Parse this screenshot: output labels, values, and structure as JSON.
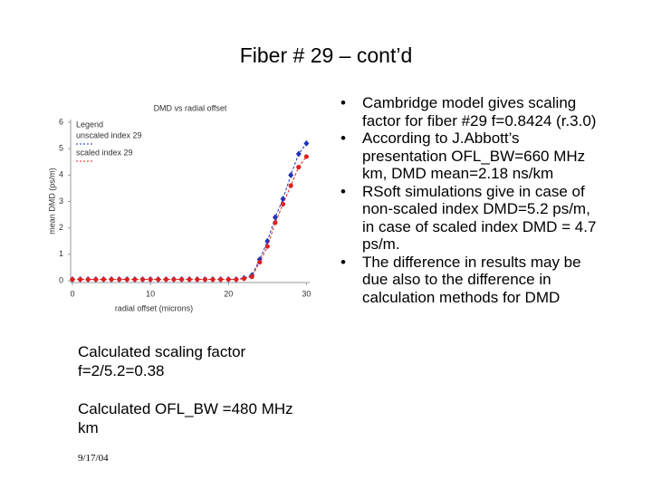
{
  "title": "Fiber # 29 – cont’d",
  "chart": {
    "type": "line",
    "title": "DMD vs radial offset",
    "x_label": "radial offset (microns)",
    "y_label": "mean DMD (ps/m)",
    "legend_title": "Legend",
    "x": [
      0,
      1,
      2,
      3,
      4,
      5,
      6,
      7,
      8,
      9,
      10,
      11,
      12,
      13,
      14,
      15,
      16,
      17,
      18,
      19,
      20,
      21,
      22,
      23,
      24,
      25,
      26,
      27,
      28,
      29,
      30
    ],
    "series": [
      {
        "name": "unscaled index 29",
        "color": "#2233bb",
        "values": [
          0.05,
          0.05,
          0.05,
          0.05,
          0.05,
          0.05,
          0.05,
          0.05,
          0.05,
          0.05,
          0.05,
          0.05,
          0.05,
          0.05,
          0.05,
          0.05,
          0.05,
          0.05,
          0.05,
          0.05,
          0.05,
          0.05,
          0.1,
          0.2,
          0.8,
          1.5,
          2.4,
          3.1,
          4.0,
          4.8,
          5.2
        ]
      },
      {
        "name": "scaled index 29",
        "color": "#dd2222",
        "values": [
          0.05,
          0.05,
          0.05,
          0.05,
          0.05,
          0.05,
          0.05,
          0.05,
          0.05,
          0.05,
          0.05,
          0.05,
          0.05,
          0.05,
          0.05,
          0.05,
          0.05,
          0.05,
          0.05,
          0.05,
          0.05,
          0.05,
          0.08,
          0.15,
          0.7,
          1.3,
          2.2,
          2.9,
          3.6,
          4.3,
          4.7
        ]
      }
    ],
    "xlim": [
      0,
      31
    ],
    "ylim": [
      0,
      6
    ],
    "xticks": [
      0,
      10,
      20,
      30
    ],
    "yticks": [
      0,
      1,
      2,
      3,
      4,
      5,
      6
    ]
  },
  "notes": [
    "Calculated scaling factor f=2/5.2=0.38",
    "Calculated OFL_BW =480 MHz km"
  ],
  "date": "9/17/04",
  "bullets": [
    "Cambridge model gives scaling factor for fiber #29 f=0.8424 (r.3.0)",
    "According to J.Abbott’s presentation OFL_BW=660 MHz km, DMD mean=2.18 ns/km",
    "RSoft simulations give in case of non-scaled index DMD=5.2 ps/m, in case of scaled index DMD = 4.7 ps/m.",
    "The difference in results may be due also to the difference in calculation methods for DMD"
  ]
}
